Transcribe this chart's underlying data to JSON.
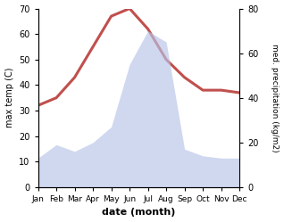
{
  "months": [
    "Jan",
    "Feb",
    "Mar",
    "Apr",
    "May",
    "Jun",
    "Jul",
    "Aug",
    "Sep",
    "Oct",
    "Nov",
    "Dec"
  ],
  "temperature": [
    32,
    35,
    43,
    55,
    67,
    70,
    62,
    50,
    43,
    38,
    38,
    37
  ],
  "precipitation": [
    13,
    19,
    16,
    20,
    27,
    55,
    70,
    65,
    17,
    14,
    13,
    13
  ],
  "temp_color": "#c0504d",
  "precip_fill_color": "#b8c4e8",
  "ylabel_left": "max temp (C)",
  "ylabel_right": "med. precipitation (kg/m2)",
  "xlabel": "date (month)",
  "ylim_left": [
    0,
    70
  ],
  "ylim_right": [
    0,
    80
  ],
  "yticks_left": [
    0,
    10,
    20,
    30,
    40,
    50,
    60,
    70
  ],
  "yticks_right": [
    0,
    20,
    40,
    60,
    80
  ],
  "temp_linewidth": 2.2,
  "precip_alpha": 0.65
}
